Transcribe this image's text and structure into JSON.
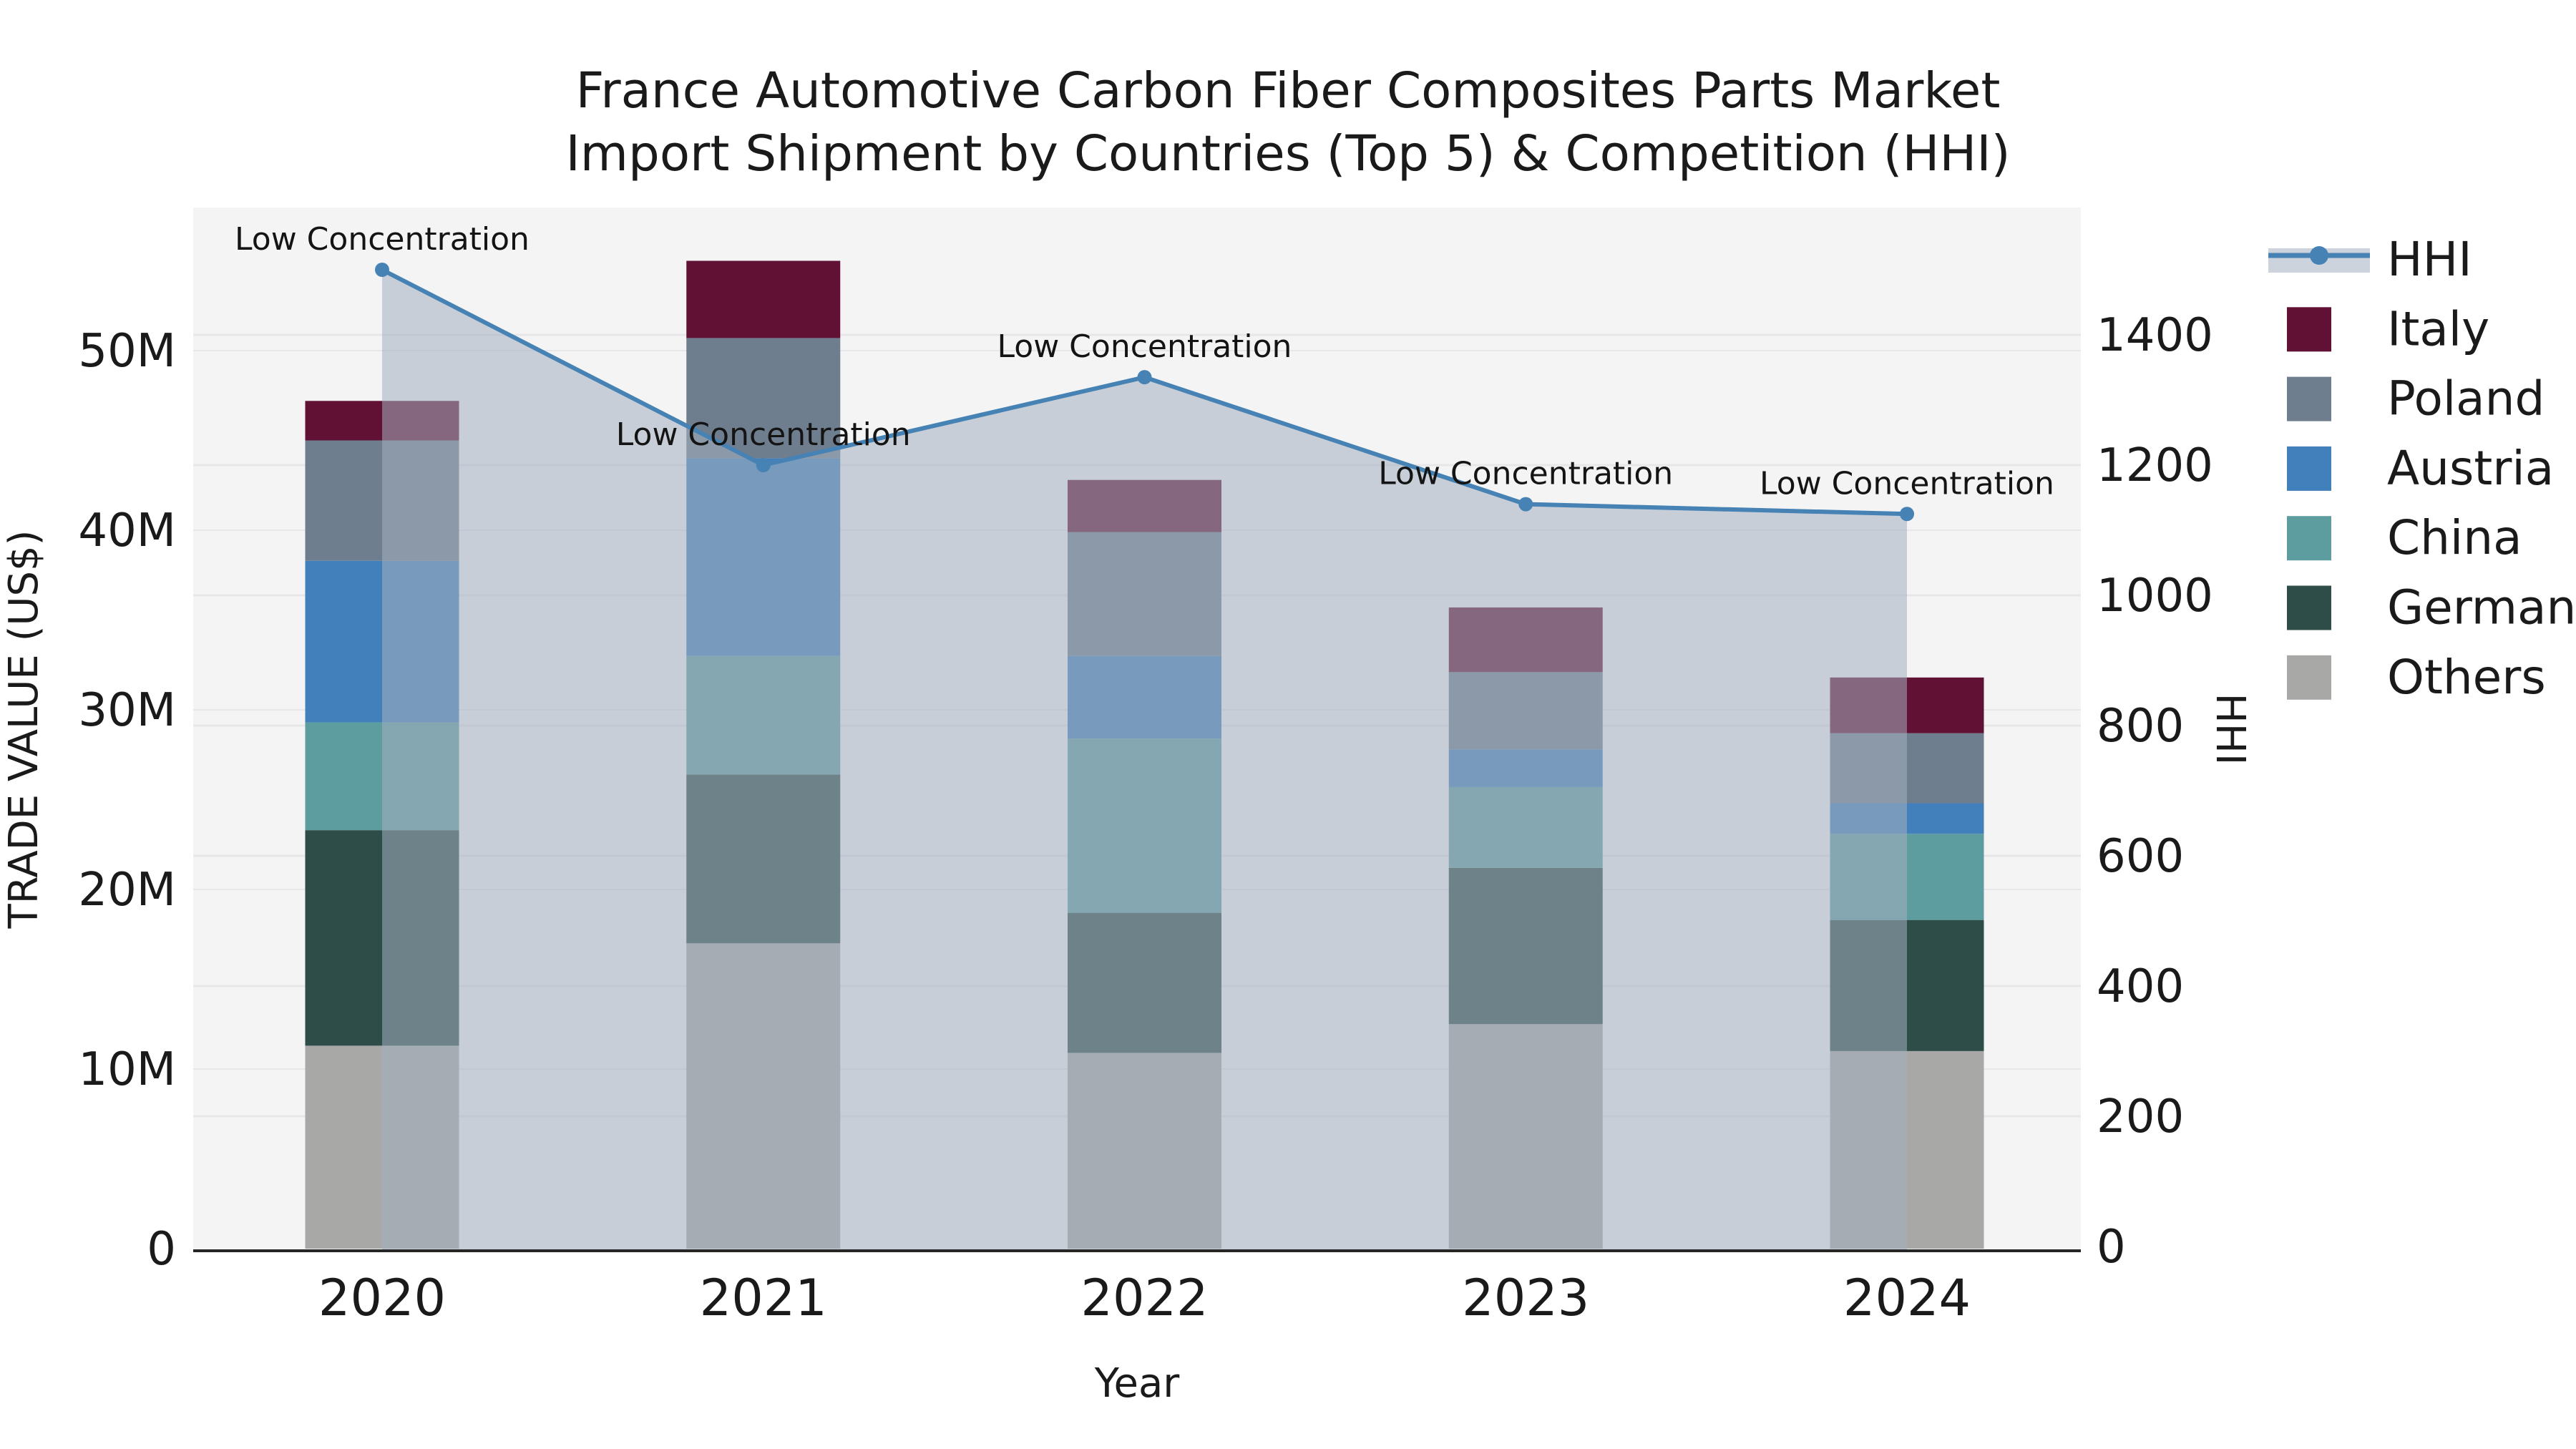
{
  "title": {
    "line1": "France Automotive Carbon Fiber Composites Parts Market",
    "line2": "Import Shipment by Countries (Top 5) & Competition (HHI)"
  },
  "axes": {
    "x_label": "Year",
    "y_left_label": "TRADE VALUE (US$)",
    "y_right_label": "HHI",
    "y_left_ticks": [
      {
        "label": "0",
        "value": 0
      },
      {
        "label": "10M",
        "value": 10
      },
      {
        "label": "20M",
        "value": 20
      },
      {
        "label": "30M",
        "value": 30
      },
      {
        "label": "40M",
        "value": 40
      },
      {
        "label": "50M",
        "value": 50
      }
    ],
    "y_right_ticks": [
      {
        "label": "0",
        "value": 0
      },
      {
        "label": "200",
        "value": 200
      },
      {
        "label": "400",
        "value": 400
      },
      {
        "label": "600",
        "value": 600
      },
      {
        "label": "800",
        "value": 800
      },
      {
        "label": "1000",
        "value": 1000
      },
      {
        "label": "1200",
        "value": 1200
      },
      {
        "label": "1400",
        "value": 1400
      }
    ]
  },
  "chart_data": {
    "type": "bar",
    "subtype": "stacked-bar-with-line",
    "categories": [
      "2020",
      "2021",
      "2022",
      "2023",
      "2024"
    ],
    "series": [
      {
        "name": "Others",
        "color": "#a8a9a7",
        "values": [
          11.3,
          17.0,
          10.9,
          12.5,
          11.0
        ]
      },
      {
        "name": "Germany",
        "color": "#2e4d49",
        "values": [
          12.0,
          9.4,
          7.8,
          8.7,
          7.3
        ]
      },
      {
        "name": "China",
        "color": "#5d9da0",
        "values": [
          6.0,
          6.6,
          9.7,
          4.5,
          4.8
        ]
      },
      {
        "name": "Austria",
        "color": "#4280bb",
        "values": [
          9.0,
          11.0,
          4.6,
          2.1,
          1.7
        ]
      },
      {
        "name": "Poland",
        "color": "#6f7e8f",
        "values": [
          6.7,
          6.7,
          6.9,
          4.3,
          3.9
        ]
      },
      {
        "name": "Italy",
        "color": "#601134",
        "values": [
          2.2,
          4.3,
          2.9,
          3.6,
          3.1
        ]
      }
    ],
    "line_series": {
      "name": "HHI",
      "axis": "right",
      "values": [
        1500,
        1200,
        1335,
        1140,
        1125
      ],
      "color": "#4682b4",
      "area_fill": "rgba(164,175,192,0.55)"
    },
    "annotations": [
      {
        "text": "Low Concentration",
        "category": "2020"
      },
      {
        "text": "Low Concentration",
        "category": "2021"
      },
      {
        "text": "Low Concentration",
        "category": "2022"
      },
      {
        "text": "Low Concentration",
        "category": "2023"
      },
      {
        "text": "Low Concentration",
        "category": "2024"
      }
    ],
    "title": "France Automotive Carbon Fiber Composites Parts Market Import Shipment by Countries (Top 5) & Competition (HHI)",
    "xlabel": "Year",
    "ylabel_left": "TRADE VALUE (US$)",
    "ylabel_right": "HHI",
    "ylim_left": [
      0,
      58
    ],
    "ylim_right": [
      0,
      1600
    ],
    "grid": true,
    "legend_position": "right-outside",
    "legend": [
      "HHI",
      "Italy",
      "Poland",
      "Austria",
      "China",
      "Germany",
      "Others"
    ]
  },
  "colors": {
    "plot_background": "#f4f4f4",
    "figure_background": "#ffffff",
    "gridline": "#e7e7ea",
    "axis_line": "#262626",
    "text": "#1a1a1a"
  }
}
